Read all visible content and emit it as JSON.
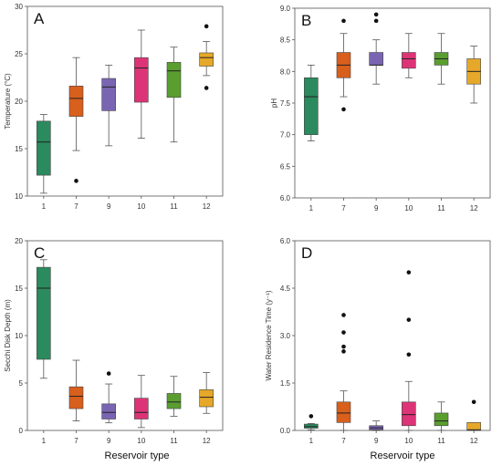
{
  "chart_data": [
    {
      "type": "box",
      "panel_label": "A",
      "ylabel": "Temperature (°C)",
      "ylim": [
        10,
        30
      ],
      "yticks": [
        "10",
        "15",
        "20",
        "25",
        "30"
      ],
      "categories": [
        "1",
        "7",
        "9",
        "10",
        "11",
        "12"
      ],
      "boxes": [
        {
          "category": "1",
          "color": "#2b8a5e",
          "whisker_low": 10.3,
          "q1": 12.2,
          "median": 15.7,
          "q3": 17.9,
          "whisker_high": 18.6,
          "outliers": []
        },
        {
          "category": "7",
          "color": "#d95f1c",
          "whisker_low": 14.8,
          "q1": 18.4,
          "median": 20.3,
          "q3": 21.6,
          "whisker_high": 24.6,
          "outliers": [
            11.6
          ]
        },
        {
          "category": "9",
          "color": "#7a65b3",
          "whisker_low": 15.3,
          "q1": 19.0,
          "median": 21.5,
          "q3": 22.4,
          "whisker_high": 23.8,
          "outliers": []
        },
        {
          "category": "10",
          "color": "#dd3477",
          "whisker_low": 16.1,
          "q1": 19.9,
          "median": 23.5,
          "q3": 24.6,
          "whisker_high": 27.5,
          "outliers": []
        },
        {
          "category": "11",
          "color": "#5a9e2f",
          "whisker_low": 15.7,
          "q1": 20.4,
          "median": 23.2,
          "q3": 24.1,
          "whisker_high": 25.7,
          "outliers": []
        },
        {
          "category": "12",
          "color": "#e6a82a",
          "whisker_low": 22.7,
          "q1": 23.7,
          "median": 24.6,
          "q3": 25.1,
          "whisker_high": 26.3,
          "outliers": [
            27.9,
            21.4
          ]
        }
      ]
    },
    {
      "type": "box",
      "panel_label": "B",
      "ylabel": "pH",
      "ylim": [
        6.0,
        9.0
      ],
      "yticks": [
        "6.0",
        "6.5",
        "7.0",
        "7.5",
        "8.0",
        "8.5",
        "9.0"
      ],
      "categories": [
        "1",
        "7",
        "9",
        "10",
        "11",
        "12"
      ],
      "boxes": [
        {
          "category": "1",
          "color": "#2b8a5e",
          "whisker_low": 6.9,
          "q1": 7.0,
          "median": 7.6,
          "q3": 7.9,
          "whisker_high": 8.1,
          "outliers": []
        },
        {
          "category": "7",
          "color": "#d95f1c",
          "whisker_low": 7.6,
          "q1": 7.9,
          "median": 8.1,
          "q3": 8.3,
          "whisker_high": 8.6,
          "outliers": [
            8.8,
            7.4
          ]
        },
        {
          "category": "9",
          "color": "#7a65b3",
          "whisker_low": 7.8,
          "q1": 8.1,
          "median": 8.1,
          "q3": 8.3,
          "whisker_high": 8.5,
          "outliers": [
            8.9,
            8.8
          ]
        },
        {
          "category": "10",
          "color": "#dd3477",
          "whisker_low": 7.9,
          "q1": 8.05,
          "median": 8.2,
          "q3": 8.3,
          "whisker_high": 8.6,
          "outliers": []
        },
        {
          "category": "11",
          "color": "#5a9e2f",
          "whisker_low": 7.8,
          "q1": 8.1,
          "median": 8.2,
          "q3": 8.3,
          "whisker_high": 8.6,
          "outliers": []
        },
        {
          "category": "12",
          "color": "#e6a82a",
          "whisker_low": 7.5,
          "q1": 7.8,
          "median": 8.0,
          "q3": 8.2,
          "whisker_high": 8.4,
          "outliers": []
        }
      ]
    },
    {
      "type": "box",
      "panel_label": "C",
      "ylabel": "Secchi Disk Depth (m)",
      "ylim": [
        0,
        20
      ],
      "yticks": [
        "0",
        "5",
        "10",
        "15",
        "20"
      ],
      "categories": [
        "1",
        "7",
        "9",
        "10",
        "11",
        "12"
      ],
      "boxes": [
        {
          "category": "1",
          "color": "#2b8a5e",
          "whisker_low": 5.5,
          "q1": 7.5,
          "median": 15.0,
          "q3": 17.2,
          "whisker_high": 18.0,
          "outliers": []
        },
        {
          "category": "7",
          "color": "#d95f1c",
          "whisker_low": 1.0,
          "q1": 2.3,
          "median": 3.6,
          "q3": 4.6,
          "whisker_high": 7.4,
          "outliers": []
        },
        {
          "category": "9",
          "color": "#7a65b3",
          "whisker_low": 0.8,
          "q1": 1.2,
          "median": 1.9,
          "q3": 2.8,
          "whisker_high": 4.9,
          "outliers": [
            6.0
          ]
        },
        {
          "category": "10",
          "color": "#dd3477",
          "whisker_low": 0.3,
          "q1": 1.2,
          "median": 1.9,
          "q3": 3.4,
          "whisker_high": 5.8,
          "outliers": []
        },
        {
          "category": "11",
          "color": "#5a9e2f",
          "whisker_low": 1.5,
          "q1": 2.3,
          "median": 3.0,
          "q3": 3.9,
          "whisker_high": 5.7,
          "outliers": []
        },
        {
          "category": "12",
          "color": "#e6a82a",
          "whisker_low": 1.8,
          "q1": 2.5,
          "median": 3.5,
          "q3": 4.3,
          "whisker_high": 6.1,
          "outliers": []
        }
      ]
    },
    {
      "type": "box",
      "panel_label": "D",
      "ylabel": "Water Residence Time (y⁻¹)",
      "ylim": [
        0,
        6.0
      ],
      "yticks": [
        "0.0",
        "1.5",
        "3.0",
        "4.5",
        "6.0"
      ],
      "categories": [
        "1",
        "7",
        "9",
        "10",
        "11",
        "12"
      ],
      "boxes": [
        {
          "category": "1",
          "color": "#2b8a5e",
          "whisker_low": 0.02,
          "q1": 0.07,
          "median": 0.12,
          "q3": 0.2,
          "whisker_high": 0.22,
          "outliers": [
            0.45
          ]
        },
        {
          "category": "7",
          "color": "#d95f1c",
          "whisker_low": 0.0,
          "q1": 0.25,
          "median": 0.55,
          "q3": 0.9,
          "whisker_high": 1.25,
          "outliers": [
            3.65,
            3.1,
            2.65,
            2.5
          ]
        },
        {
          "category": "9",
          "color": "#7a65b3",
          "whisker_low": 0.0,
          "q1": 0.02,
          "median": 0.08,
          "q3": 0.15,
          "whisker_high": 0.3,
          "outliers": []
        },
        {
          "category": "10",
          "color": "#dd3477",
          "whisker_low": 0.0,
          "q1": 0.15,
          "median": 0.5,
          "q3": 0.9,
          "whisker_high": 1.55,
          "outliers": [
            5.0,
            3.5,
            2.4
          ]
        },
        {
          "category": "11",
          "color": "#5a9e2f",
          "whisker_low": 0.0,
          "q1": 0.15,
          "median": 0.3,
          "q3": 0.55,
          "whisker_high": 0.9,
          "outliers": []
        },
        {
          "category": "12",
          "color": "#e6a82a",
          "whisker_low": 0.0,
          "q1": 0.0,
          "median": 0.02,
          "q3": 0.25,
          "whisker_high": 0.25,
          "outliers": [
            0.9
          ]
        }
      ]
    }
  ],
  "x_title": "Reservoir type"
}
